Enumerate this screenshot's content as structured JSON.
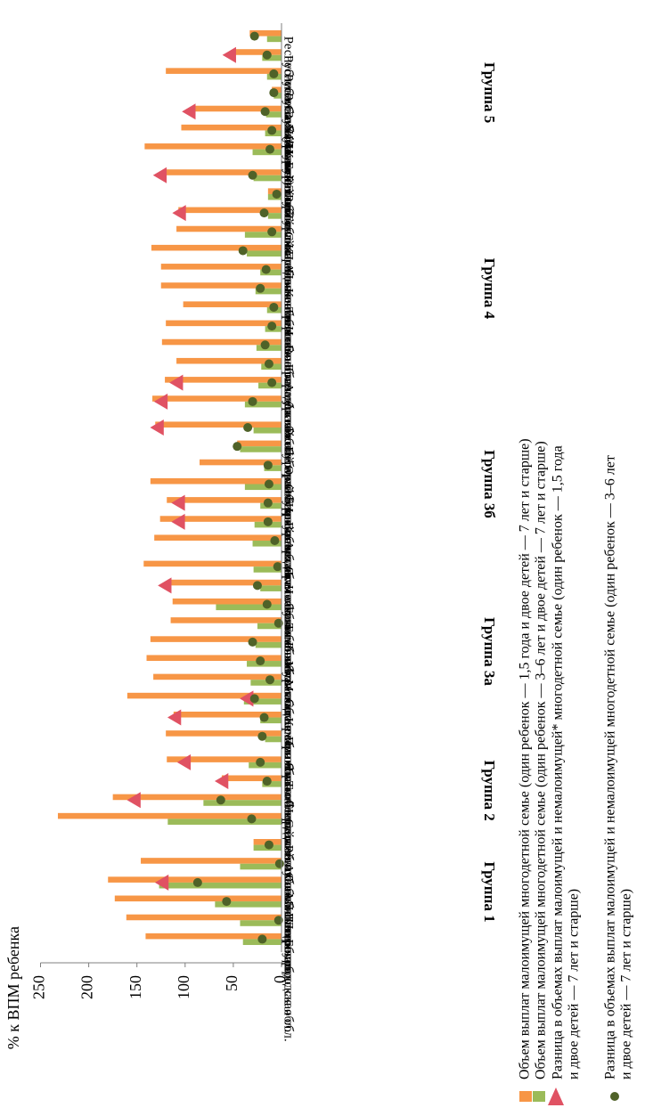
{
  "chart_data": {
    "type": "bar",
    "ylabel": "% к ВПМ ребенка",
    "ylim": [
      0,
      250
    ],
    "yticks": [
      "0",
      "50",
      "100",
      "150",
      "200",
      "250"
    ],
    "orientation": "rotated-90-clockwise",
    "categories": [
      "Белгородская обл.",
      "Ленинградская обл.",
      "Липецкая обл.",
      "г. Москва",
      "г. Санкт-Петербург",
      "Республика Татарстан",
      "Сахалинская обл.",
      "Свердловская обл.",
      "Тюменская обл.",
      "Ямало-Ненецкий АО",
      "Приморский край",
      "Кемеровская обл.",
      "Самарская обл.",
      "Магаданская обл.",
      "Мурманская обл.",
      "Рязанская обл.",
      "Тамбовская обл.",
      "Тульская обл.",
      "Челябинская обл.",
      "Ярославская обл.",
      "Архангельская обл.",
      "Вологодская обл.",
      "Иркутская обл.",
      "Омская обл.",
      "Оренбургская обл.",
      "Пермский край",
      "Республика Башкортостан",
      "Алтайский край",
      "Амурская обл.",
      "Брянская обл.",
      "Волгоградская обл.",
      "Ивановская обл.",
      "Тверская обл.",
      "Костромская обл.",
      "Пензенская обл.",
      "Псковская обл.",
      "Смоленская обл.",
      "Томская обл.",
      "Республика Адыгея",
      "Республика Карелия",
      "Камчатский край",
      "Курганская обл.",
      "Забайкальский край",
      "Республика Бурятия",
      "Республика Марий Эл",
      "Республика Хакасия",
      "Республика Саха (Якутия)"
    ],
    "groups": [
      {
        "label": "Группа 1",
        "start": 0,
        "end": 5
      },
      {
        "label": "Группа 2",
        "start": 6,
        "end": 9
      },
      {
        "label": "Группа 3а",
        "start": 10,
        "end": 19
      },
      {
        "label": "Группа 3б",
        "start": 20,
        "end": 26
      },
      {
        "label": "Группа 4",
        "start": 27,
        "end": 39
      },
      {
        "label": "Группа 5",
        "start": 40,
        "end": 46
      }
    ],
    "series": [
      {
        "name": "Объем выплат малоимущей многодетной семье (один ребенок — 1,5 года и двое детей — 7 лет и старше)",
        "kind": "bar",
        "color": "#f79646",
        "values": [
          141,
          161,
          173,
          180,
          146,
          29,
          232,
          175,
          62,
          119,
          120,
          112,
          160,
          133,
          140,
          136,
          115,
          113,
          118,
          143,
          132,
          126,
          119,
          136,
          85,
          46,
          131,
          134,
          121,
          109,
          124,
          120,
          102,
          125,
          125,
          135,
          109,
          107,
          14,
          123,
          142,
          104,
          92,
          10,
          120,
          51,
          33
        ]
      },
      {
        "name": "Объем выплат малоимущей многодетной семье (один ребенок — 3–6 лет и двое детей — 7 лет и старше)",
        "kind": "bar",
        "color": "#9bbb59",
        "values": [
          40,
          43,
          69,
          127,
          43,
          29,
          118,
          81,
          20,
          34,
          17,
          22,
          39,
          32,
          36,
          27,
          25,
          68,
          22,
          29,
          30,
          28,
          22,
          38,
          18,
          43,
          29,
          38,
          24,
          21,
          26,
          17,
          15,
          27,
          22,
          36,
          38,
          14,
          14,
          29,
          30,
          17,
          16,
          8,
          15,
          20,
          15
        ]
      },
      {
        "name": "Разница в объемах выплат малоимущей и немалоимущей* многодетной семье (один ребенок — 1,5 года и двое детей — 7 лет и старше)",
        "kind": "triangle",
        "color": "#e05263",
        "values": [
          null,
          null,
          null,
          123,
          null,
          null,
          null,
          152,
          61,
          100,
          null,
          110,
          35,
          null,
          null,
          null,
          null,
          null,
          120,
          null,
          null,
          106,
          106,
          null,
          null,
          null,
          128,
          124,
          108,
          null,
          null,
          null,
          null,
          null,
          null,
          null,
          null,
          105,
          null,
          125,
          null,
          null,
          95,
          null,
          null,
          53,
          null
        ]
      },
      {
        "name": "Разница в объемах выплат малоимущей и немалоимущей многодетной семье (один ребенок — 3–6 лет и двое детей — 7 лет и старше)",
        "kind": "circle",
        "color": "#4f6228",
        "values": [
          20,
          3,
          57,
          87,
          2,
          13,
          31,
          63,
          15,
          22,
          20,
          18,
          28,
          12,
          22,
          30,
          3,
          15,
          25,
          4,
          7,
          14,
          14,
          13,
          14,
          46,
          35,
          30,
          10,
          13,
          17,
          10,
          8,
          22,
          16,
          40,
          10,
          18,
          5,
          30,
          12,
          10,
          17,
          8,
          8,
          15,
          28
        ]
      }
    ]
  },
  "legend": [
    {
      "text": "Объем выплат малоимущей многодетной семье (один ребенок — 1,5 года и двое детей — 7 лет и старше)"
    },
    {
      "text": "Объем выплат малоимущей многодетной семье (один ребенок — 3–6 лет и двое детей — 7 лет и старше)"
    },
    {
      "line1": "Разница в объемах выплат малоимущей и немалоимущей* многодетной семье (один ребенок — 1,5 года",
      "line2": "и двое детей — 7 лет и старше)"
    },
    {
      "line1": "Разница в объемах выплат малоимущей и немалоимущей многодетной семье (один ребенок — 3–6 лет",
      "line2": "и двое детей — 7 лет и старше)"
    }
  ]
}
